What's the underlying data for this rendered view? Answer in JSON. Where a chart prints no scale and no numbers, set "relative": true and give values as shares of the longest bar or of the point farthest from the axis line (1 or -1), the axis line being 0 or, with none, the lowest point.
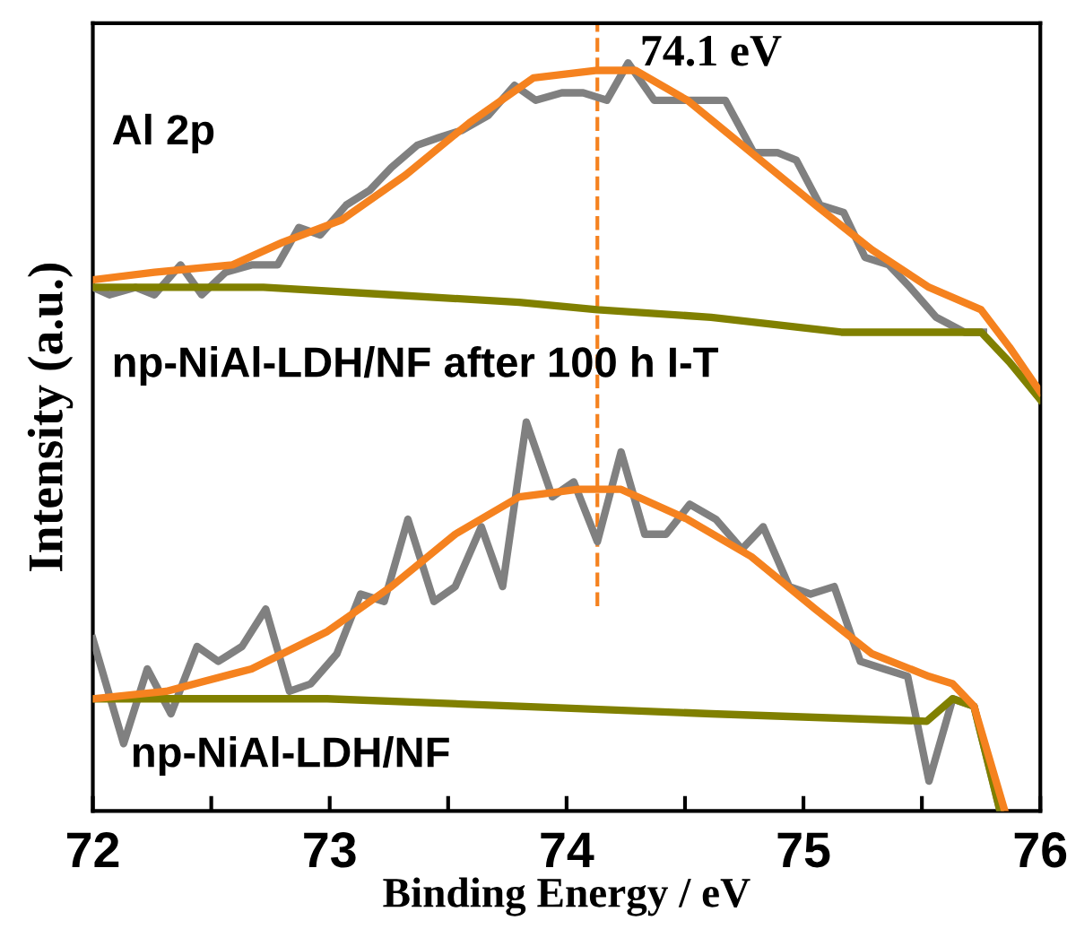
{
  "chart_data": {
    "type": "line",
    "relative": true,
    "xlabel": "Binding Energy / eV",
    "ylabel": "Intensity (a.u.)",
    "xlim": [
      72,
      76
    ],
    "xticks": [
      72,
      {
        "value": 72.5,
        "label": null
      },
      73,
      {
        "value": 73.5,
        "label": null
      },
      74,
      {
        "value": 74.5,
        "label": null
      },
      75,
      {
        "value": 75.5,
        "label": null
      },
      76
    ],
    "grid": false,
    "legend": false,
    "marker": "none",
    "line_style": "solid",
    "tick_labels": "x",
    "ref_lines": [
      {
        "axis": "x",
        "value": 74.13,
        "label": "74.1 eV",
        "color": "#f5821f",
        "line_style": "dashed"
      }
    ],
    "annotations": [
      "Al 2p",
      "np-NiAl-LDH/NF after 100 h I-T",
      "np-NiAl-LDH/NF"
    ],
    "series": [
      {
        "color": "#808080",
        "x": [
          72.0,
          72.07,
          72.18,
          72.26,
          72.37,
          72.46,
          72.56,
          72.67,
          72.78,
          72.87,
          72.96,
          73.07,
          73.17,
          73.26,
          73.37,
          73.46,
          73.56,
          73.67,
          73.78,
          73.87,
          73.98,
          74.07,
          74.17,
          74.26,
          74.37,
          74.48,
          74.57,
          74.67,
          74.79,
          74.89,
          74.97,
          75.07,
          75.17,
          75.26,
          75.36,
          75.45,
          75.56,
          75.68,
          75.76
        ],
        "values": [
          0.7,
          0.69,
          0.7,
          0.69,
          0.73,
          0.69,
          0.72,
          0.73,
          0.73,
          0.78,
          0.77,
          0.81,
          0.83,
          0.86,
          0.89,
          0.9,
          0.91,
          0.93,
          0.97,
          0.95,
          0.96,
          0.96,
          0.95,
          1.0,
          0.95,
          0.95,
          0.95,
          0.95,
          0.88,
          0.88,
          0.87,
          0.81,
          0.8,
          0.74,
          0.73,
          0.7,
          0.66,
          0.64,
          0.64
        ]
      },
      {
        "color": "#808000",
        "x": [
          72.0,
          72.72,
          73.26,
          73.8,
          74.13,
          74.61,
          75.16,
          75.75,
          75.87,
          76.0
        ],
        "values": [
          0.7,
          0.7,
          0.69,
          0.68,
          0.67,
          0.66,
          0.64,
          0.64,
          0.6,
          0.55
        ]
      },
      {
        "color": "#f5821f",
        "x": [
          72.0,
          72.26,
          72.59,
          72.8,
          73.05,
          73.32,
          73.59,
          73.86,
          74.13,
          74.29,
          74.51,
          74.78,
          75.05,
          75.29,
          75.53,
          75.75,
          75.87,
          76.0
        ],
        "values": [
          0.71,
          0.72,
          0.73,
          0.76,
          0.79,
          0.85,
          0.92,
          0.98,
          0.99,
          0.99,
          0.95,
          0.88,
          0.81,
          0.75,
          0.7,
          0.67,
          0.62,
          0.56
        ]
      },
      {
        "color": "#808080",
        "x": [
          72.0,
          72.13,
          72.23,
          72.33,
          72.44,
          72.53,
          72.63,
          72.73,
          72.83,
          72.92,
          73.03,
          73.13,
          73.23,
          73.33,
          73.44,
          73.53,
          73.64,
          73.73,
          73.83,
          73.94,
          74.03,
          74.13,
          74.23,
          74.33,
          74.42,
          74.52,
          74.63,
          74.74,
          74.83,
          74.94,
          75.03,
          75.13,
          75.24,
          75.34,
          75.44,
          75.53,
          75.63,
          75.72,
          75.83
        ],
        "values": [
          0.23,
          0.09,
          0.19,
          0.13,
          0.22,
          0.2,
          0.22,
          0.27,
          0.16,
          0.17,
          0.21,
          0.29,
          0.28,
          0.39,
          0.28,
          0.3,
          0.38,
          0.3,
          0.52,
          0.42,
          0.44,
          0.36,
          0.48,
          0.37,
          0.37,
          0.41,
          0.39,
          0.35,
          0.38,
          0.3,
          0.29,
          0.3,
          0.2,
          0.19,
          0.18,
          0.04,
          0.15,
          0.14,
          0.0
        ]
      },
      {
        "color": "#808000",
        "x": [
          72.0,
          72.99,
          73.8,
          74.61,
          75.52,
          75.63,
          75.72,
          75.83
        ],
        "values": [
          0.15,
          0.15,
          0.14,
          0.13,
          0.12,
          0.15,
          0.14,
          0.0
        ]
      },
      {
        "color": "#f5821f",
        "x": [
          72.0,
          72.31,
          72.67,
          72.99,
          73.26,
          73.53,
          73.8,
          74.05,
          74.23,
          74.51,
          74.78,
          75.05,
          75.29,
          75.53,
          75.63,
          75.72,
          75.85
        ],
        "values": [
          0.15,
          0.16,
          0.19,
          0.24,
          0.3,
          0.37,
          0.42,
          0.43,
          0.43,
          0.39,
          0.34,
          0.27,
          0.21,
          0.18,
          0.17,
          0.14,
          0.0
        ]
      }
    ]
  }
}
